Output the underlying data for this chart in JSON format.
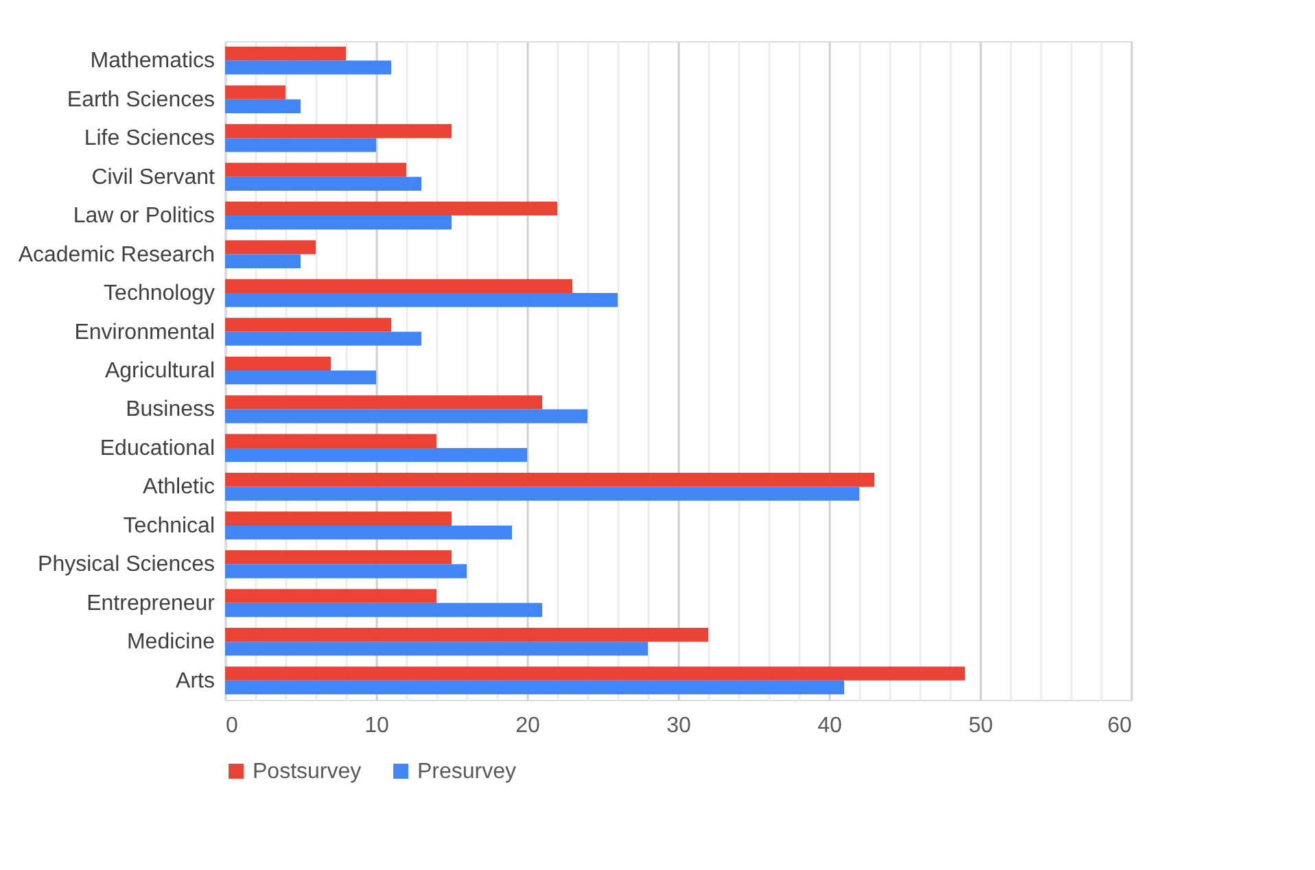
{
  "chart_data": {
    "type": "bar",
    "orientation": "horizontal",
    "categories": [
      "Mathematics",
      "Earth Sciences",
      "Life Sciences",
      "Civil Servant",
      "Law or Politics",
      "Academic Research",
      "Technology",
      "Environmental",
      "Agricultural",
      "Business",
      "Educational",
      "Athletic",
      "Technical",
      "Physical Sciences",
      "Entrepreneur",
      "Medicine",
      "Arts"
    ],
    "series": [
      {
        "name": "Postsurvey",
        "color": "#ea4335",
        "values": [
          8,
          4,
          15,
          12,
          22,
          6,
          23,
          11,
          7,
          21,
          14,
          43,
          15,
          15,
          14,
          32,
          49
        ]
      },
      {
        "name": "Presurvey",
        "color": "#4285f4",
        "values": [
          11,
          5,
          10,
          13,
          15,
          5,
          26,
          13,
          10,
          24,
          20,
          42,
          19,
          16,
          21,
          28,
          41
        ]
      }
    ],
    "xlim": [
      0,
      60
    ],
    "xticks": [
      0,
      {
        "value": 2,
        "label": null
      },
      {
        "value": 4,
        "label": null
      },
      {
        "value": 6,
        "label": null
      },
      {
        "value": 8,
        "label": null
      },
      10,
      {
        "value": 12,
        "label": null
      },
      {
        "value": 14,
        "label": null
      },
      {
        "value": 16,
        "label": null
      },
      {
        "value": 18,
        "label": null
      },
      20,
      {
        "value": 22,
        "label": null
      },
      {
        "value": 24,
        "label": null
      },
      {
        "value": 26,
        "label": null
      },
      {
        "value": 28,
        "label": null
      },
      30,
      {
        "value": 32,
        "label": null
      },
      {
        "value": 34,
        "label": null
      },
      {
        "value": 36,
        "label": null
      },
      {
        "value": 38,
        "label": null
      },
      40,
      {
        "value": 42,
        "label": null
      },
      {
        "value": 44,
        "label": null
      },
      {
        "value": 46,
        "label": null
      },
      {
        "value": 48,
        "label": null
      },
      50,
      {
        "value": 52,
        "label": null
      },
      {
        "value": 54,
        "label": null
      },
      {
        "value": 56,
        "label": null
      },
      {
        "value": 58,
        "label": null
      },
      60
    ],
    "grid": true,
    "legend": "bottom"
  }
}
